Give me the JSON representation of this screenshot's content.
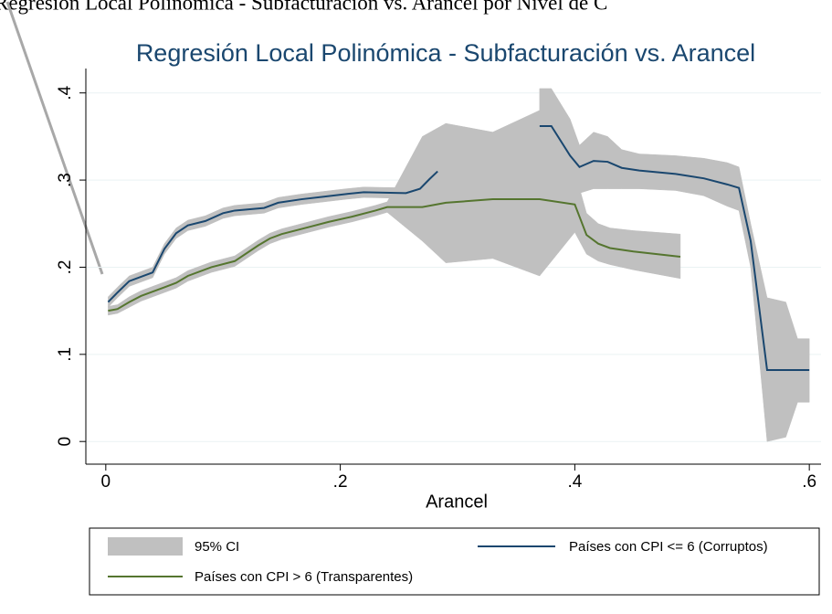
{
  "caption": "Regresión Local Polinómica - Subfacturación vs. Arancel por Nivel de C",
  "chart_data": {
    "type": "line",
    "title": "Regresión Local Polinómica - Subfacturación vs. Arancel",
    "x_label": "Arancel",
    "xlim": [
      -0.017,
      0.61
    ],
    "xticks": [
      {
        "value": 0,
        "label": "0"
      },
      {
        "value": 0.2,
        "label": ".2"
      },
      {
        "value": 0.4,
        "label": ".4"
      },
      {
        "value": 0.6,
        "label": ".6"
      }
    ],
    "ylim": [
      -0.026,
      0.428
    ],
    "yticks": [
      {
        "value": 0,
        "label": "0"
      },
      {
        "value": 0.1,
        "label": ".1"
      },
      {
        "value": 0.2,
        "label": ".2"
      },
      {
        "value": 0.3,
        "label": ".3"
      },
      {
        "value": 0.4,
        "label": ".4"
      }
    ],
    "grid": true,
    "ci_name": "95% CI",
    "ci_color": "#c0c0c0",
    "series": [
      {
        "name": "Países con CPI <= 6 (Corruptos)",
        "color": "#1a476f",
        "x": [
          0.002,
          0.01,
          0.02,
          0.04,
          0.05,
          0.06,
          0.07,
          0.085,
          0.1,
          0.11,
          0.135,
          0.147,
          0.167,
          0.186,
          0.205,
          0.22,
          0.256,
          0.268,
          0.276,
          0.283,
          0.33,
          0.37,
          0.38,
          0.396,
          0.404,
          0.416,
          0.428,
          0.44,
          0.455,
          0.486,
          0.51,
          0.53,
          0.54,
          0.55,
          0.564,
          0.58,
          0.59,
          0.6
        ],
        "values": [
          0.16,
          0.171,
          0.184,
          0.194,
          0.221,
          0.239,
          0.248,
          0.253,
          0.262,
          0.265,
          0.268,
          0.274,
          0.278,
          0.281,
          0.284,
          0.286,
          0.285,
          0.29,
          0.301,
          0.31,
          null,
          0.362,
          0.362,
          0.328,
          0.315,
          0.322,
          0.321,
          0.314,
          0.311,
          0.307,
          0.302,
          0.295,
          0.291,
          0.23,
          0.082,
          0.082,
          0.082,
          0.082
        ],
        "ci_lower": [
          0.154,
          0.165,
          0.178,
          0.188,
          0.215,
          0.233,
          0.242,
          0.247,
          0.256,
          0.259,
          0.262,
          0.268,
          0.272,
          0.275,
          0.278,
          0.28,
          0.279,
          0.275,
          0.28,
          0.285,
          null,
          0.3,
          0.3,
          0.29,
          0.285,
          0.29,
          0.29,
          0.29,
          0.29,
          0.288,
          0.282,
          0.27,
          0.265,
          0.2,
          0.0,
          0.005,
          0.045,
          0.045
        ],
        "ci_upper": [
          0.166,
          0.177,
          0.19,
          0.2,
          0.227,
          0.245,
          0.254,
          0.259,
          0.268,
          0.271,
          0.274,
          0.28,
          0.284,
          0.287,
          0.29,
          0.292,
          0.291,
          0.31,
          0.33,
          0.34,
          null,
          0.405,
          0.405,
          0.37,
          0.34,
          0.355,
          0.35,
          0.335,
          0.33,
          0.328,
          0.325,
          0.32,
          0.315,
          0.25,
          0.165,
          0.16,
          0.118,
          0.118
        ]
      },
      {
        "name": "Países con CPI > 6 (Transparentes)",
        "color": "#55752f",
        "x": [
          0.002,
          0.01,
          0.02,
          0.03,
          0.05,
          0.06,
          0.07,
          0.09,
          0.11,
          0.13,
          0.14,
          0.15,
          0.17,
          0.19,
          0.21,
          0.23,
          0.24,
          0.27,
          0.29,
          0.33,
          0.37,
          0.4,
          0.41,
          0.42,
          0.43,
          0.45,
          0.47,
          0.49
        ],
        "values": [
          0.15,
          0.152,
          0.16,
          0.167,
          0.177,
          0.182,
          0.19,
          0.2,
          0.207,
          0.225,
          0.233,
          0.238,
          0.245,
          0.252,
          0.258,
          0.265,
          0.269,
          0.269,
          0.274,
          0.278,
          0.278,
          0.272,
          0.237,
          0.227,
          0.222,
          0.218,
          0.215,
          0.212
        ],
        "ci_lower": [
          0.145,
          0.147,
          0.154,
          0.161,
          0.171,
          0.176,
          0.184,
          0.194,
          0.201,
          0.219,
          0.227,
          0.232,
          0.239,
          0.246,
          0.252,
          0.259,
          0.263,
          0.23,
          0.205,
          0.21,
          0.19,
          0.24,
          0.215,
          0.207,
          0.203,
          0.197,
          0.192,
          0.187
        ],
        "ci_upper": [
          0.155,
          0.157,
          0.166,
          0.173,
          0.183,
          0.188,
          0.196,
          0.206,
          0.213,
          0.231,
          0.239,
          0.244,
          0.251,
          0.258,
          0.264,
          0.271,
          0.275,
          0.35,
          0.365,
          0.355,
          0.38,
          0.31,
          0.262,
          0.25,
          0.245,
          0.242,
          0.24,
          0.238
        ]
      }
    ]
  }
}
